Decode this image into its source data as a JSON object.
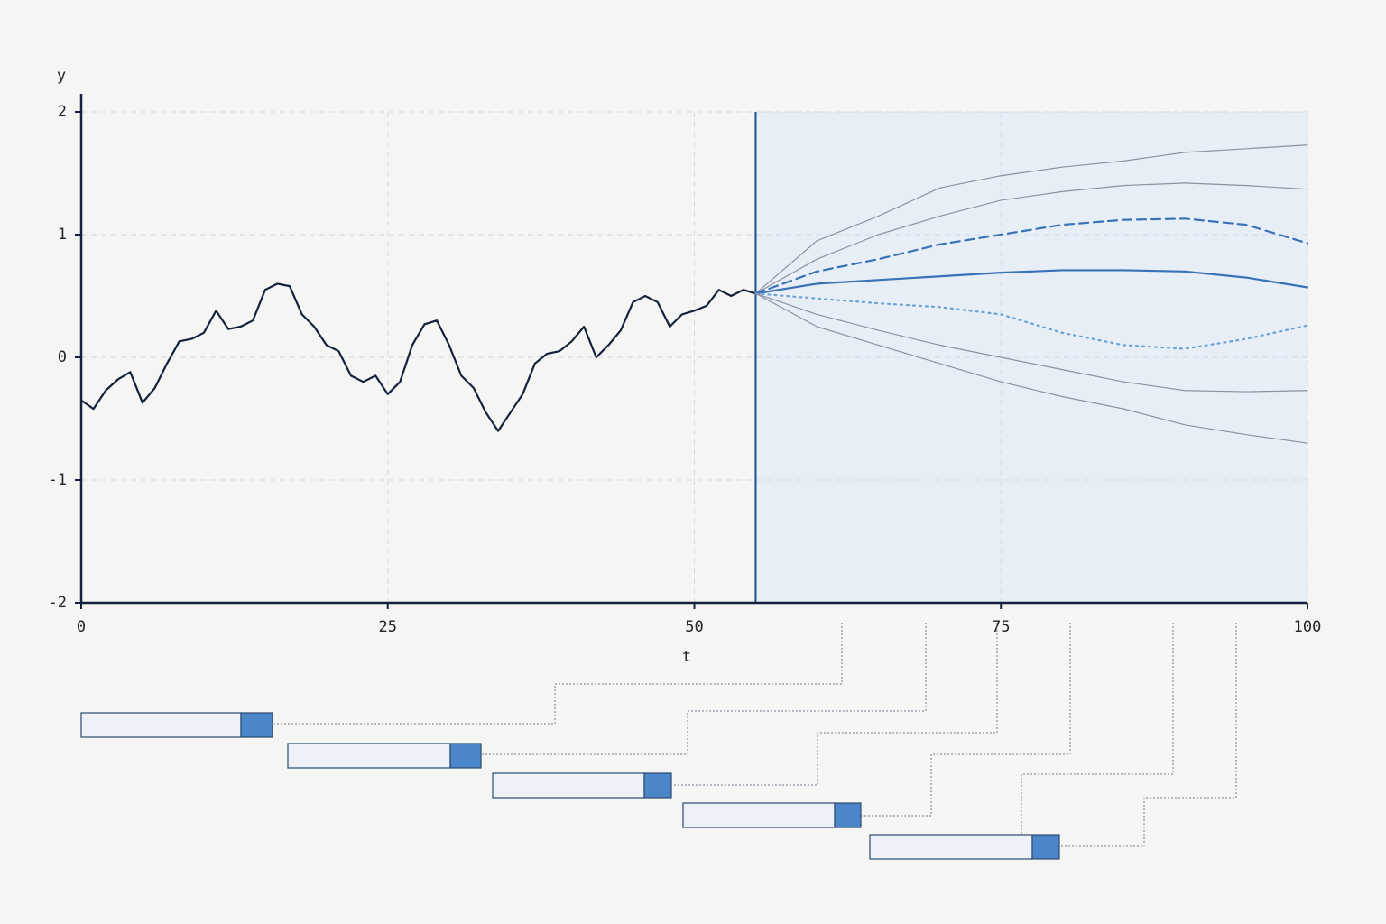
{
  "chart_data": {
    "type": "line",
    "ylabel": "y",
    "xlabel": "t",
    "xlim": [
      0,
      100
    ],
    "xticks": [
      0,
      25,
      50,
      75,
      100
    ],
    "ylim": [
      -2,
      2
    ],
    "yticks": [
      -2,
      -1,
      0,
      1,
      2
    ],
    "grid": true,
    "forecast_start": 55,
    "shade_color": "#e8eef6",
    "series": [
      {
        "color": "#14213d",
        "linestyle": "solid",
        "linewidth": 2.2,
        "x": [
          0,
          1,
          2,
          3,
          4,
          5,
          6,
          7,
          8,
          9,
          10,
          11,
          12,
          13,
          14,
          15,
          16,
          17,
          18,
          19,
          20,
          21,
          22,
          23,
          24,
          25,
          26,
          27,
          28,
          29,
          30,
          31,
          32,
          33,
          34,
          35,
          36,
          37,
          38,
          39,
          40,
          41,
          42,
          43,
          44,
          45,
          46,
          47,
          48,
          49,
          50,
          51,
          52,
          53,
          54,
          55
        ],
        "values": [
          -0.35,
          -0.42,
          -0.27,
          -0.18,
          -0.12,
          -0.37,
          -0.25,
          -0.05,
          0.13,
          0.15,
          0.2,
          0.38,
          0.23,
          0.25,
          0.3,
          0.55,
          0.6,
          0.58,
          0.35,
          0.25,
          0.1,
          0.05,
          -0.15,
          -0.2,
          -0.15,
          -0.3,
          -0.2,
          0.1,
          0.27,
          0.3,
          0.1,
          -0.15,
          -0.25,
          -0.45,
          -0.6,
          -0.45,
          -0.3,
          -0.05,
          0.03,
          0.05,
          0.13,
          0.25,
          0.0,
          0.1,
          0.22,
          0.45,
          0.5,
          0.45,
          0.25,
          0.35,
          0.38,
          0.42,
          0.55,
          0.5,
          0.55,
          0.52
        ]
      },
      {
        "color": "#8a92a3",
        "linestyle": "solid",
        "linewidth": 1.2,
        "x": [
          55,
          60,
          65,
          70,
          75,
          80,
          85,
          90,
          95,
          100
        ],
        "values": [
          0.52,
          0.95,
          1.15,
          1.38,
          1.48,
          1.55,
          1.6,
          1.67,
          1.7,
          1.73
        ]
      },
      {
        "color": "#8a92a3",
        "linestyle": "solid",
        "linewidth": 1.2,
        "x": [
          55,
          60,
          65,
          70,
          75,
          80,
          85,
          90,
          95,
          100
        ],
        "values": [
          0.52,
          0.8,
          1.0,
          1.15,
          1.28,
          1.35,
          1.4,
          1.42,
          1.4,
          1.37
        ]
      },
      {
        "color": "#3a72b8",
        "linestyle": "dashed",
        "linewidth": 2.2,
        "x": [
          55,
          60,
          65,
          70,
          75,
          80,
          85,
          90,
          95,
          100
        ],
        "values": [
          0.52,
          0.7,
          0.8,
          0.92,
          1.0,
          1.08,
          1.12,
          1.13,
          1.08,
          0.93
        ]
      },
      {
        "color": "#3a72b8",
        "linestyle": "solid",
        "linewidth": 2.2,
        "x": [
          55,
          60,
          65,
          70,
          75,
          80,
          85,
          90,
          95,
          100
        ],
        "values": [
          0.52,
          0.6,
          0.63,
          0.66,
          0.69,
          0.71,
          0.71,
          0.7,
          0.65,
          0.57
        ]
      },
      {
        "color": "#6aa3d8",
        "linestyle": "dotted",
        "linewidth": 2.2,
        "x": [
          55,
          60,
          65,
          70,
          75,
          80,
          85,
          90,
          95,
          100
        ],
        "values": [
          0.52,
          0.48,
          0.44,
          0.41,
          0.35,
          0.2,
          0.1,
          0.07,
          0.15,
          0.26
        ]
      },
      {
        "color": "#8a92a3",
        "linestyle": "solid",
        "linewidth": 1.2,
        "x": [
          55,
          60,
          65,
          70,
          75,
          80,
          85,
          90,
          95,
          100
        ],
        "values": [
          0.52,
          0.35,
          0.22,
          0.1,
          0.0,
          -0.1,
          -0.2,
          -0.27,
          -0.28,
          -0.27
        ]
      },
      {
        "color": "#8a92a3",
        "linestyle": "solid",
        "linewidth": 1.2,
        "x": [
          55,
          60,
          65,
          70,
          75,
          80,
          85,
          90,
          95,
          100
        ],
        "values": [
          0.52,
          0.25,
          0.1,
          -0.05,
          -0.2,
          -0.32,
          -0.42,
          -0.55,
          -0.63,
          -0.7
        ]
      }
    ]
  }
}
